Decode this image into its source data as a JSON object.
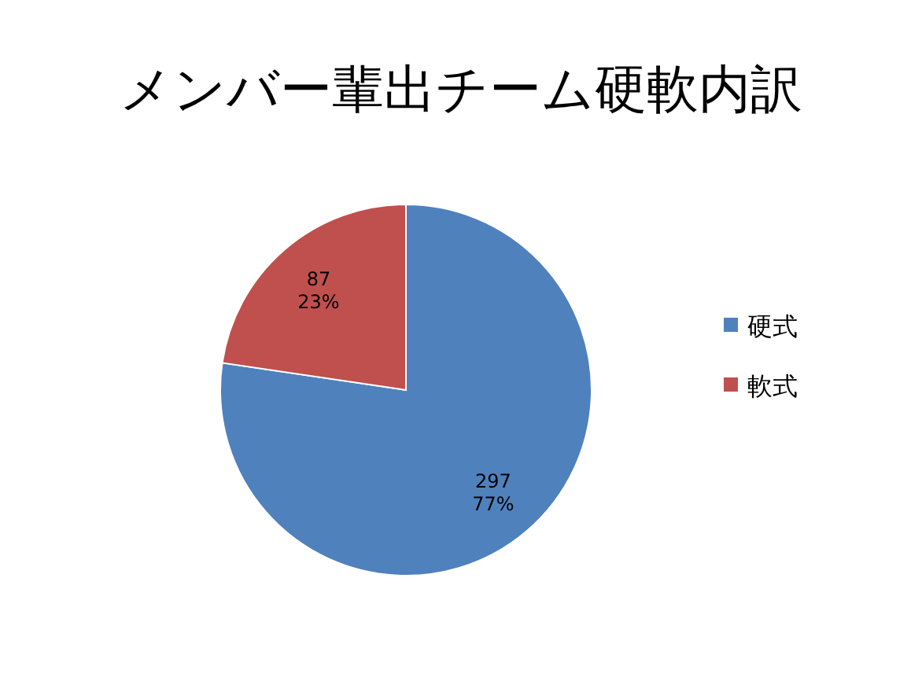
{
  "chart_data": {
    "type": "pie",
    "title": "メンバー輩出チーム硬軟内訳",
    "categories": [
      "硬式",
      "軟式"
    ],
    "values": [
      297,
      87
    ],
    "colors": [
      "#4f81bd",
      "#c0504d"
    ],
    "value_labels": [
      "297\n77%",
      "87\n23%"
    ],
    "legend": "right"
  }
}
